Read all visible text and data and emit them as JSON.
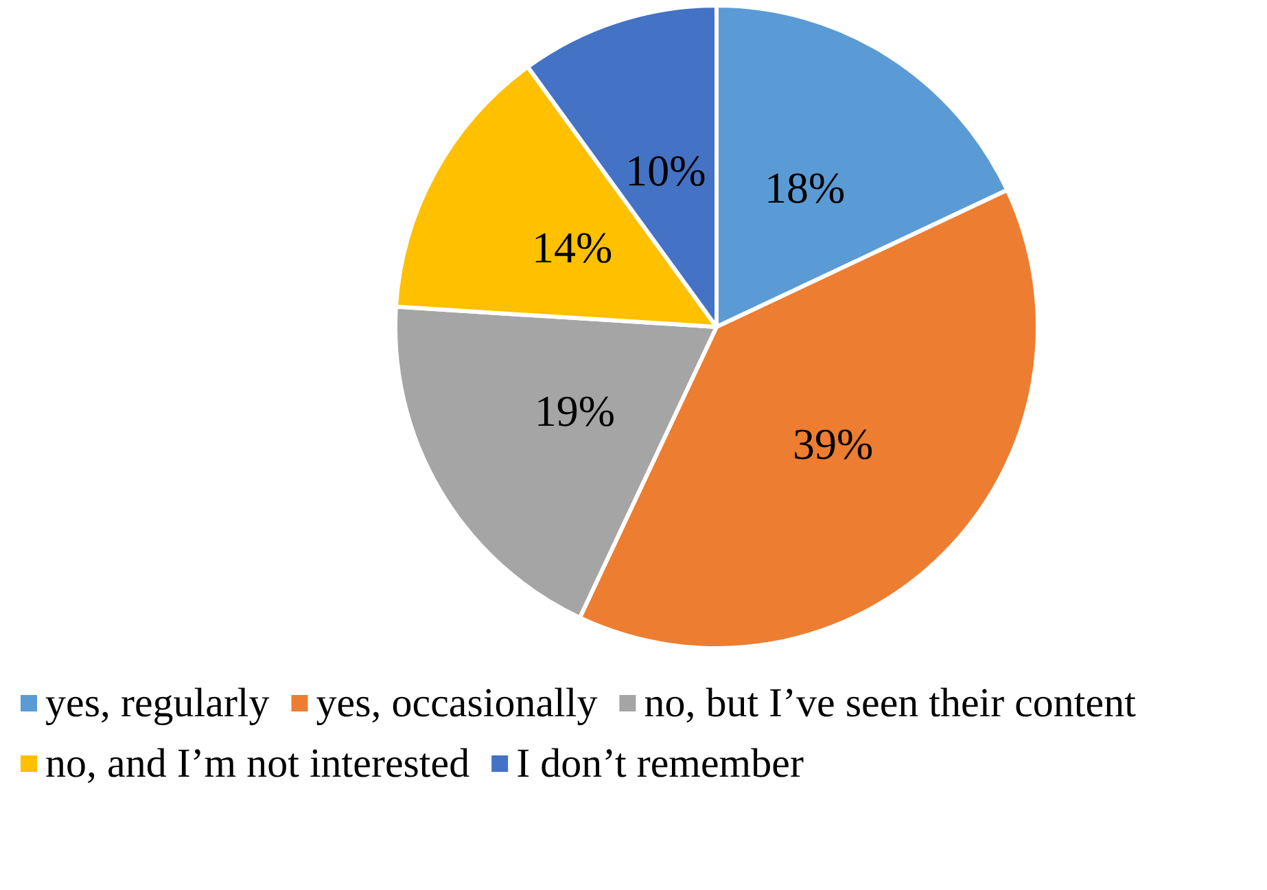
{
  "chart_data": {
    "type": "pie",
    "categories": [
      "yes, regularly",
      "yes, occasionally",
      "no, but I’ve seen their content",
      "no, and I’m not interested",
      "I don’t remember"
    ],
    "values": [
      18,
      39,
      19,
      14,
      10
    ],
    "colors": [
      "#5b9bd5",
      "#ed7d31",
      "#a5a5a5",
      "#ffc000",
      "#4472c4"
    ],
    "value_labels": [
      "18%",
      "39%",
      "19%",
      "14%",
      "10%"
    ],
    "legend": "bottom"
  }
}
